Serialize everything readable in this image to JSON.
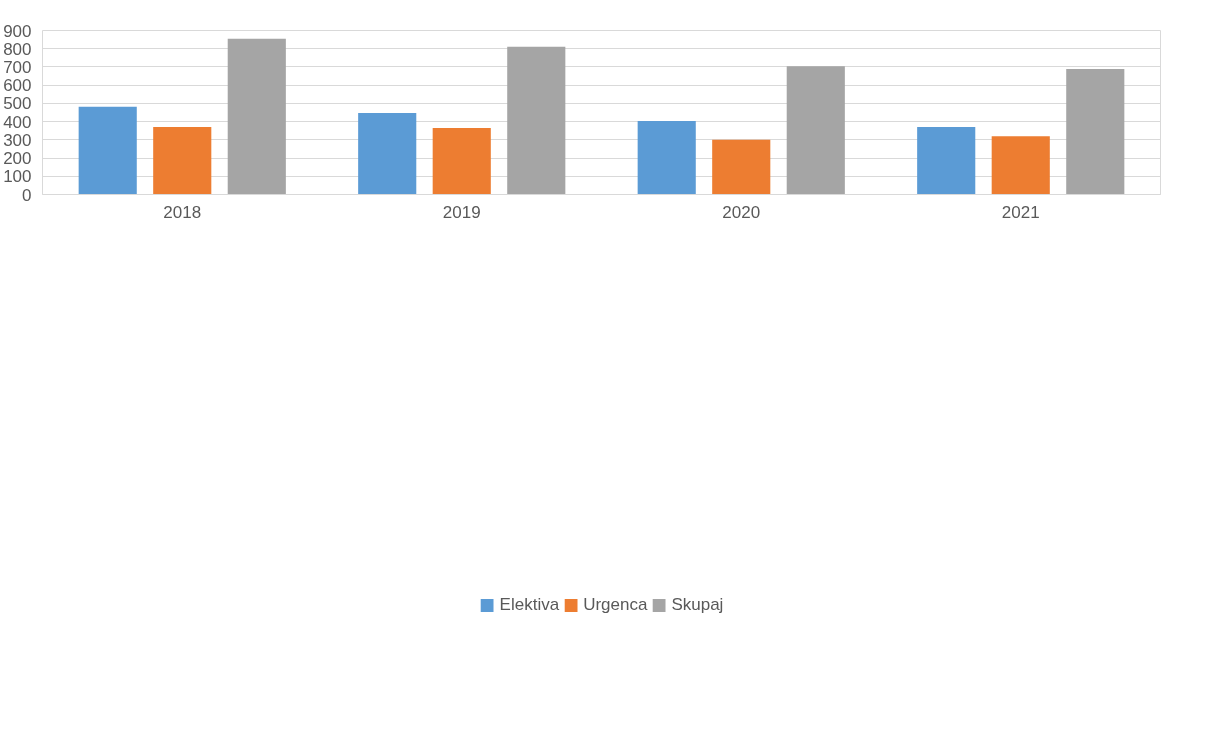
{
  "chart_data": {
    "type": "bar",
    "categories": [
      "2018",
      "2019",
      "2020",
      "2021"
    ],
    "series": [
      {
        "name": "Elektiva",
        "color": "#5b9bd5",
        "values": [
          481,
          447,
          403,
          370
        ]
      },
      {
        "name": "Urgenca",
        "color": "#ed7d31",
        "values": [
          371,
          365,
          300,
          319
        ]
      },
      {
        "name": "Skupaj",
        "color": "#a5a5a5",
        "values": [
          855,
          811,
          704,
          689
        ]
      }
    ],
    "ylim": [
      0,
      900
    ],
    "yticks": [
      0,
      100,
      200,
      300,
      400,
      500,
      600,
      700,
      800,
      900
    ],
    "grid": "y",
    "legend": "bottom"
  }
}
